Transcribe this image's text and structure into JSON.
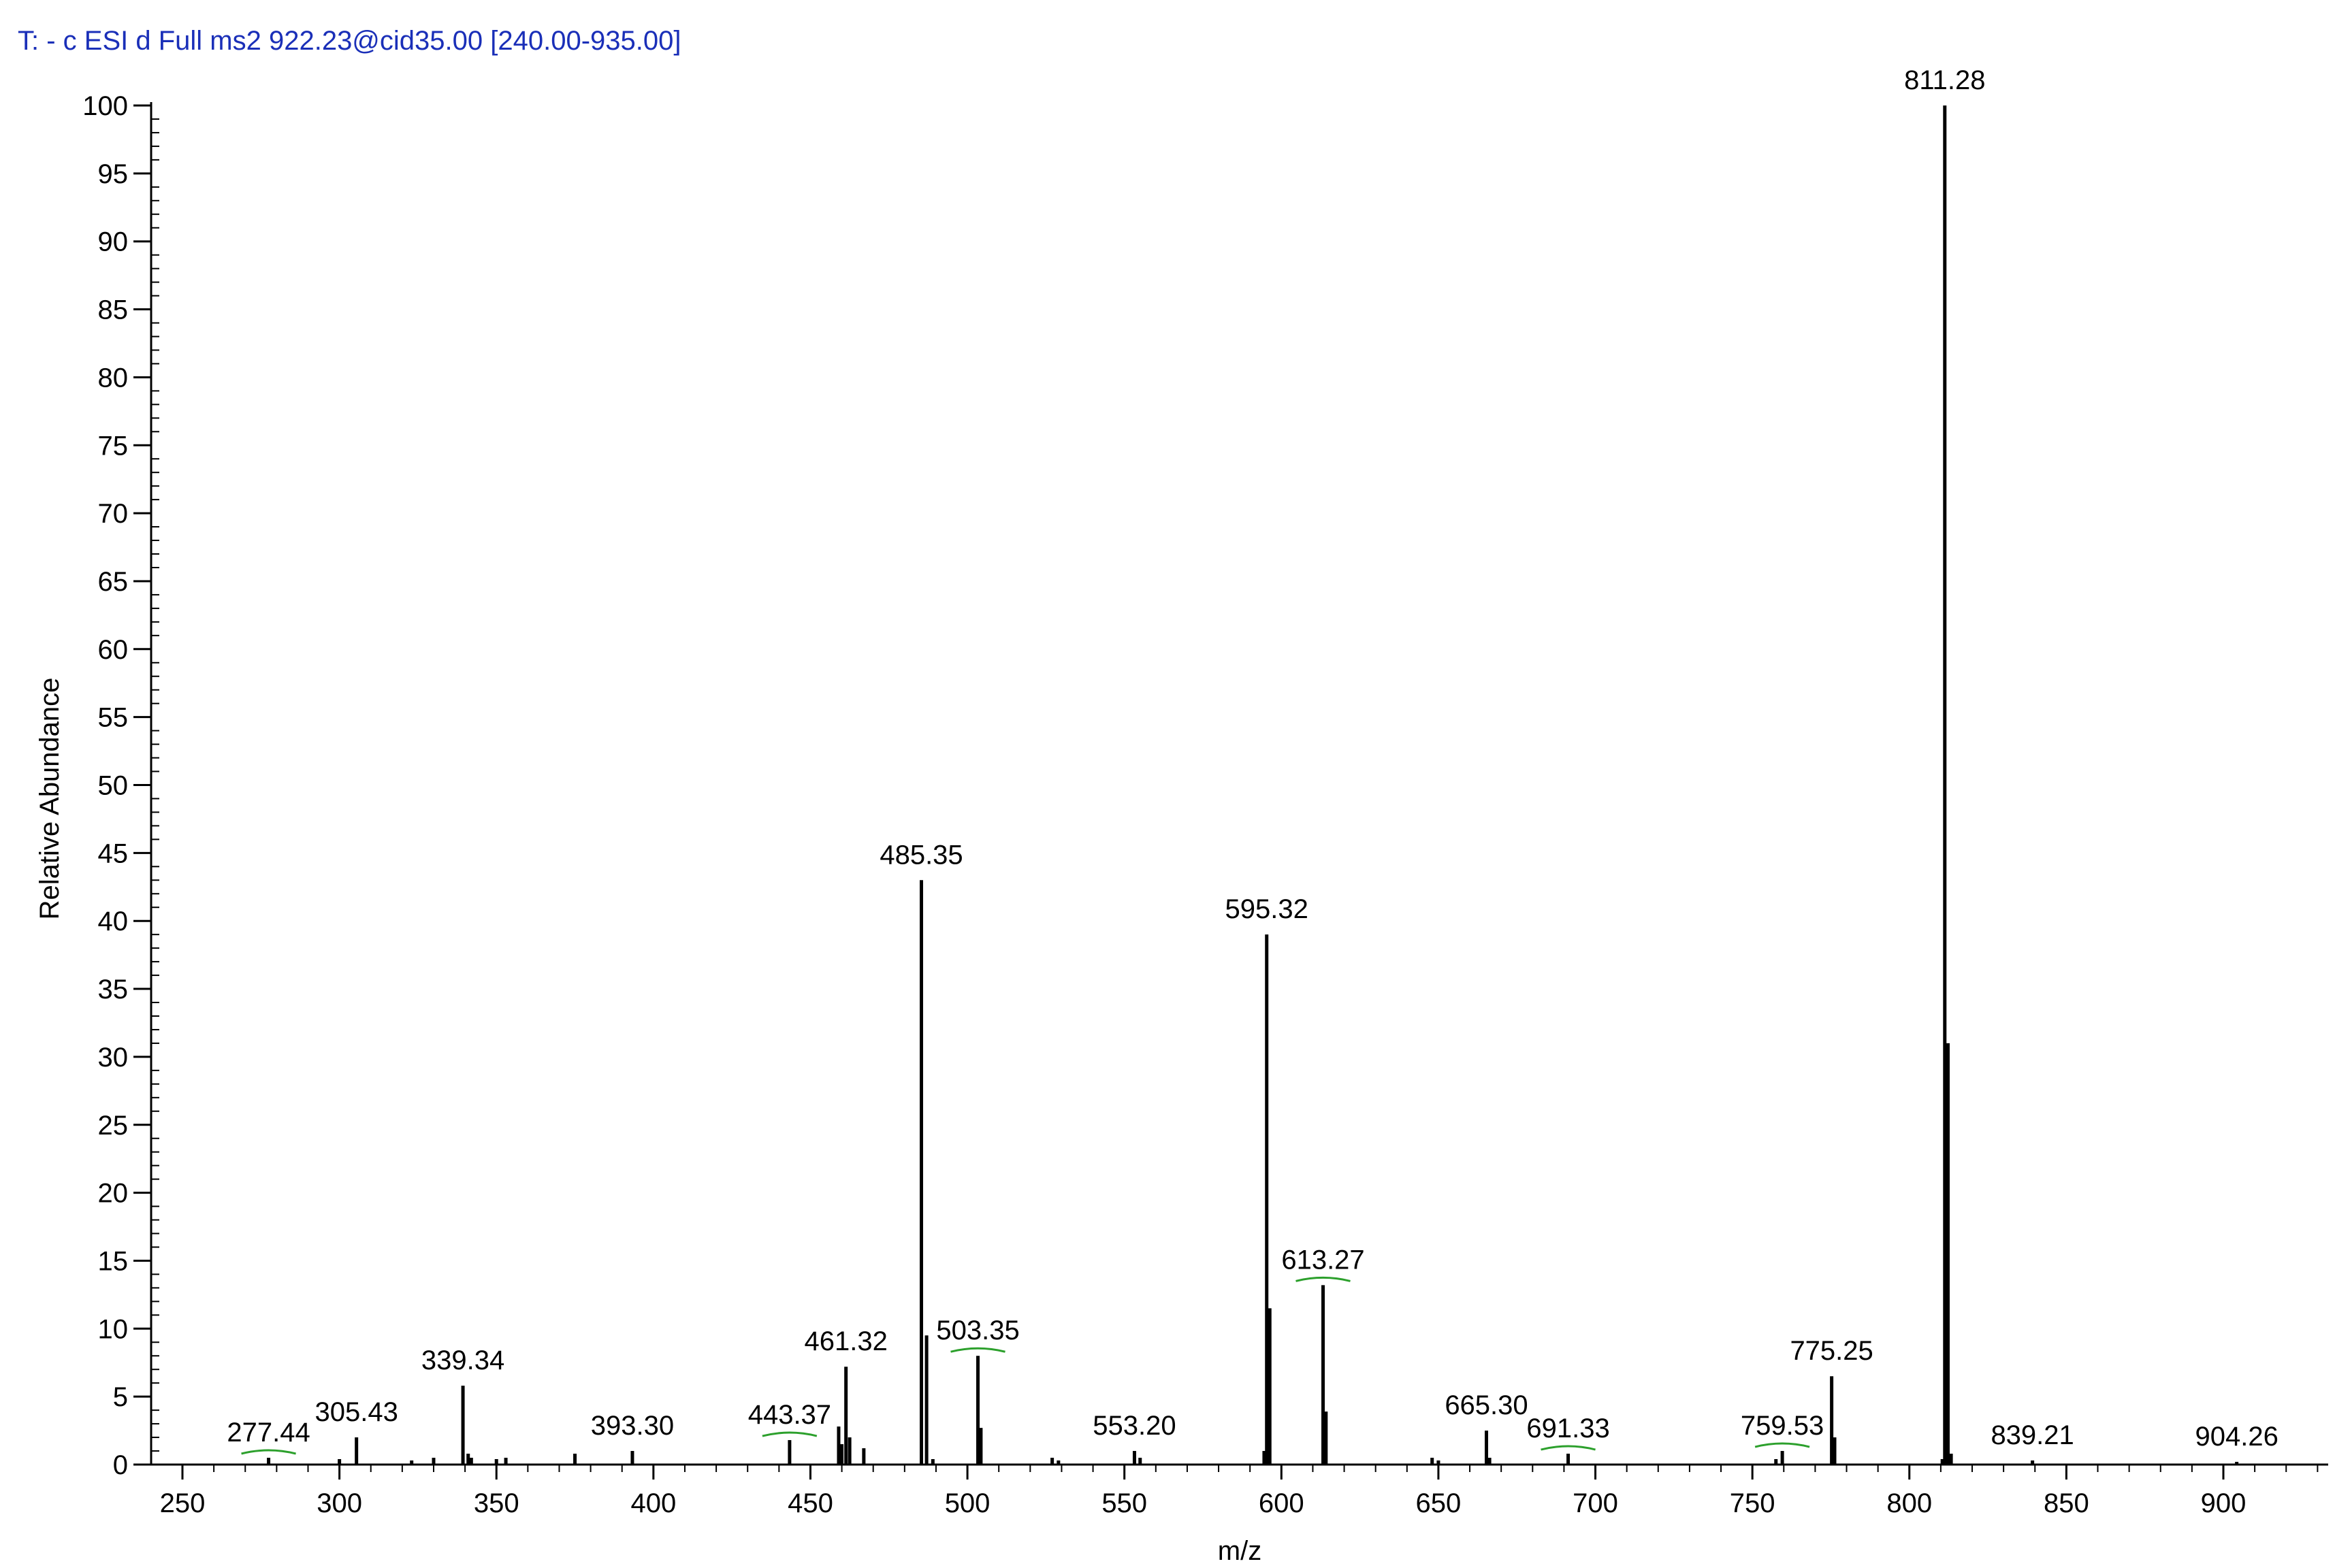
{
  "header": {
    "scan_title": "T: - c ESI d Full ms2 922.23@cid35.00 [240.00-935.00]"
  },
  "colors": {
    "title": "#1a2fb8",
    "axis": "#000000",
    "peaks": "#000000",
    "label_marker": "#2ca02c"
  },
  "chart_data": {
    "type": "bar",
    "subtype": "mass-spectrum",
    "title": "",
    "xlabel": "m/z",
    "ylabel": "Relative Abundance",
    "xlim": [
      240,
      935
    ],
    "ylim": [
      0,
      100
    ],
    "xticks": [
      250,
      300,
      350,
      400,
      450,
      500,
      550,
      600,
      650,
      700,
      750,
      800,
      850,
      900
    ],
    "yticks": [
      0,
      5,
      10,
      15,
      20,
      25,
      30,
      35,
      40,
      45,
      50,
      55,
      60,
      65,
      70,
      75,
      80,
      85,
      90,
      95,
      100
    ],
    "grid": false,
    "legend": "none",
    "peaks": [
      {
        "mz": 277.44,
        "abundance": 0.5
      },
      {
        "mz": 300.0,
        "abundance": 0.4
      },
      {
        "mz": 305.43,
        "abundance": 2.0
      },
      {
        "mz": 323.0,
        "abundance": 0.3
      },
      {
        "mz": 330.0,
        "abundance": 0.5
      },
      {
        "mz": 339.34,
        "abundance": 5.8
      },
      {
        "mz": 341.0,
        "abundance": 0.8
      },
      {
        "mz": 342.0,
        "abundance": 0.5
      },
      {
        "mz": 350.0,
        "abundance": 0.4
      },
      {
        "mz": 353.0,
        "abundance": 0.5
      },
      {
        "mz": 375.0,
        "abundance": 0.8
      },
      {
        "mz": 393.3,
        "abundance": 1.0
      },
      {
        "mz": 443.37,
        "abundance": 1.8
      },
      {
        "mz": 459.0,
        "abundance": 2.8
      },
      {
        "mz": 460.0,
        "abundance": 1.5
      },
      {
        "mz": 461.32,
        "abundance": 7.2
      },
      {
        "mz": 462.5,
        "abundance": 2.0
      },
      {
        "mz": 467.0,
        "abundance": 1.2
      },
      {
        "mz": 485.35,
        "abundance": 43.0
      },
      {
        "mz": 487.0,
        "abundance": 9.5
      },
      {
        "mz": 489.0,
        "abundance": 0.4
      },
      {
        "mz": 503.35,
        "abundance": 8.0
      },
      {
        "mz": 504.3,
        "abundance": 2.7
      },
      {
        "mz": 527.0,
        "abundance": 0.5
      },
      {
        "mz": 529.0,
        "abundance": 0.3
      },
      {
        "mz": 553.2,
        "abundance": 1.0
      },
      {
        "mz": 555.0,
        "abundance": 0.5
      },
      {
        "mz": 594.5,
        "abundance": 1.0
      },
      {
        "mz": 595.32,
        "abundance": 39.0
      },
      {
        "mz": 596.3,
        "abundance": 11.5
      },
      {
        "mz": 613.27,
        "abundance": 13.2
      },
      {
        "mz": 614.2,
        "abundance": 3.9
      },
      {
        "mz": 648.0,
        "abundance": 0.5
      },
      {
        "mz": 650.0,
        "abundance": 0.3
      },
      {
        "mz": 665.3,
        "abundance": 2.5
      },
      {
        "mz": 666.3,
        "abundance": 0.5
      },
      {
        "mz": 691.33,
        "abundance": 0.8
      },
      {
        "mz": 757.5,
        "abundance": 0.4
      },
      {
        "mz": 759.53,
        "abundance": 1.0
      },
      {
        "mz": 775.25,
        "abundance": 6.5
      },
      {
        "mz": 776.2,
        "abundance": 2.0
      },
      {
        "mz": 810.5,
        "abundance": 0.4
      },
      {
        "mz": 811.28,
        "abundance": 100.0
      },
      {
        "mz": 812.3,
        "abundance": 31.0
      },
      {
        "mz": 813.3,
        "abundance": 0.8
      },
      {
        "mz": 839.21,
        "abundance": 0.3
      },
      {
        "mz": 904.26,
        "abundance": 0.2
      }
    ],
    "peak_labels": [
      {
        "text": "277.44",
        "mz": 277.44,
        "abundance": 0.5,
        "marker": true
      },
      {
        "text": "305.43",
        "mz": 305.43,
        "abundance": 2.0,
        "marker": false
      },
      {
        "text": "339.34",
        "mz": 339.34,
        "abundance": 5.8,
        "marker": false
      },
      {
        "text": "393.30",
        "mz": 393.3,
        "abundance": 1.0,
        "marker": false
      },
      {
        "text": "443.37",
        "mz": 443.37,
        "abundance": 1.8,
        "marker": true
      },
      {
        "text": "461.32",
        "mz": 461.32,
        "abundance": 7.2,
        "marker": false
      },
      {
        "text": "485.35",
        "mz": 485.35,
        "abundance": 43.0,
        "marker": false
      },
      {
        "text": "503.35",
        "mz": 503.35,
        "abundance": 8.0,
        "marker": true
      },
      {
        "text": "553.20",
        "mz": 553.2,
        "abundance": 1.0,
        "marker": false
      },
      {
        "text": "595.32",
        "mz": 595.32,
        "abundance": 39.0,
        "marker": false
      },
      {
        "text": "613.27",
        "mz": 613.27,
        "abundance": 13.2,
        "marker": true
      },
      {
        "text": "665.30",
        "mz": 665.3,
        "abundance": 2.5,
        "marker": false
      },
      {
        "text": "691.33",
        "mz": 691.33,
        "abundance": 0.8,
        "marker": true
      },
      {
        "text": "759.53",
        "mz": 759.53,
        "abundance": 1.0,
        "marker": true
      },
      {
        "text": "775.25",
        "mz": 775.25,
        "abundance": 6.5,
        "marker": false
      },
      {
        "text": "811.28",
        "mz": 811.28,
        "abundance": 100.0,
        "marker": false
      },
      {
        "text": "839.21",
        "mz": 839.21,
        "abundance": 0.3,
        "marker": false
      },
      {
        "text": "904.26",
        "mz": 904.26,
        "abundance": 0.2,
        "marker": false
      }
    ]
  }
}
